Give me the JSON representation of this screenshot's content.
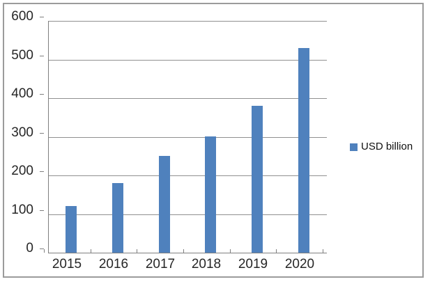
{
  "chart_data": {
    "type": "bar",
    "categories": [
      "2015",
      "2016",
      "2017",
      "2018",
      "2019",
      "2020"
    ],
    "series": [
      {
        "name": "USD billion",
        "values": [
          120,
          180,
          250,
          300,
          380,
          530
        ]
      }
    ],
    "legend_label": "USD billion",
    "legend_position": "right",
    "ylim": [
      0,
      600
    ],
    "yticks": [
      0,
      100,
      200,
      300,
      400,
      500,
      600
    ],
    "grid": true,
    "colors": {
      "bar": "#4F81BD",
      "gridline": "#909090",
      "axis": "#7F7F7F",
      "frame_border": "#9B9B9B",
      "text": "#262626",
      "background": "#FFFFFF"
    }
  }
}
